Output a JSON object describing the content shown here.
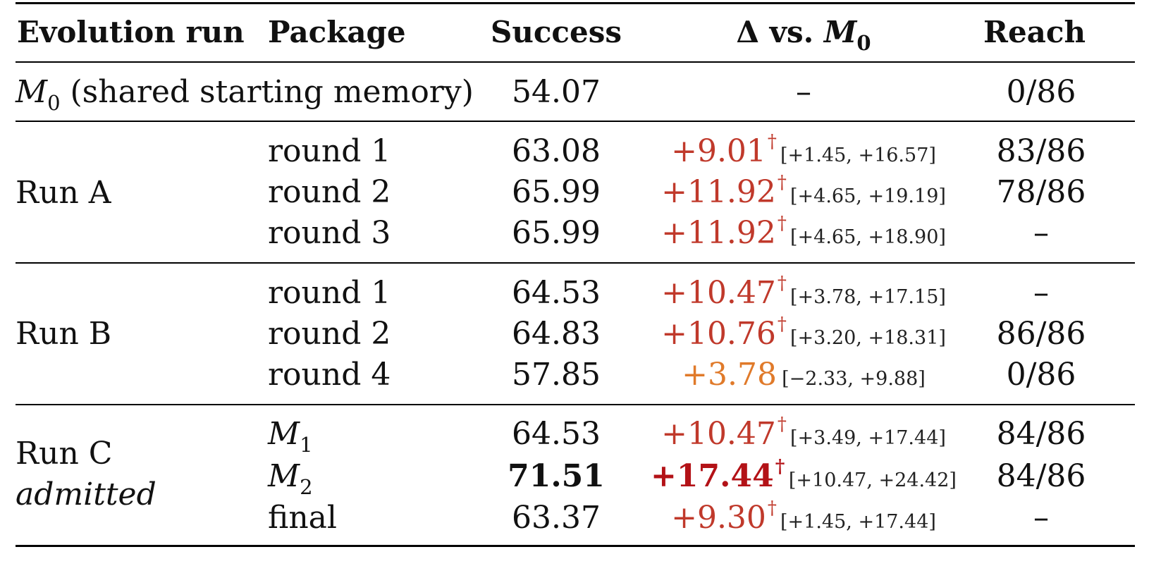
{
  "headers": {
    "run": "Evolution run",
    "package": "Package",
    "success": "Success",
    "delta_prefix": "Δ vs. ",
    "delta_symbol": "M",
    "delta_sub": "0",
    "reach": "Reach"
  },
  "baseline": {
    "symbol": "M",
    "sub": "0",
    "label": "(shared starting memory)",
    "success": "54.07",
    "delta": "–",
    "reach": "0/86"
  },
  "groups": [
    {
      "run": "Run A",
      "note": "",
      "rows": [
        {
          "package": "round 1",
          "success": "63.08",
          "delta": "+9.01",
          "dagger": "†",
          "ci": "[+1.45, +16.57]",
          "reach": "83/86",
          "style": "sig"
        },
        {
          "package": "round 2",
          "success": "65.99",
          "delta": "+11.92",
          "dagger": "†",
          "ci": "[+4.65, +19.19]",
          "reach": "78/86",
          "style": "sig"
        },
        {
          "package": "round 3",
          "success": "65.99",
          "delta": "+11.92",
          "dagger": "†",
          "ci": "[+4.65, +18.90]",
          "reach": "–",
          "style": "sig"
        }
      ]
    },
    {
      "run": "Run B",
      "note": "",
      "rows": [
        {
          "package": "round 1",
          "success": "64.53",
          "delta": "+10.47",
          "dagger": "†",
          "ci": "[+3.78, +17.15]",
          "reach": "–",
          "style": "sig"
        },
        {
          "package": "round 2",
          "success": "64.83",
          "delta": "+10.76",
          "dagger": "†",
          "ci": "[+3.20, +18.31]",
          "reach": "86/86",
          "style": "sig"
        },
        {
          "package": "round 4",
          "success": "57.85",
          "delta": "+3.78",
          "dagger": "",
          "ci": "[−2.33, +9.88]",
          "reach": "0/86",
          "style": "weak"
        }
      ]
    },
    {
      "run": "Run C",
      "note": "admitted",
      "rows": [
        {
          "package": "M",
          "package_sub": "1",
          "success": "64.53",
          "delta": "+10.47",
          "dagger": "†",
          "ci": "[+3.49, +17.44]",
          "reach": "84/86",
          "style": "sig"
        },
        {
          "package": "M",
          "package_sub": "2",
          "success": "71.51",
          "delta": "+17.44",
          "dagger": "†",
          "ci": "[+10.47, +24.42]",
          "reach": "84/86",
          "style": "best"
        },
        {
          "package": "final",
          "success": "63.37",
          "delta": "+9.30",
          "dagger": "†",
          "ci": "[+1.45, +17.44]",
          "reach": "–",
          "style": "sig"
        }
      ]
    }
  ],
  "colors": {
    "significant": "#c0392b",
    "weak": "#e07a2a",
    "best": "#b31217"
  }
}
